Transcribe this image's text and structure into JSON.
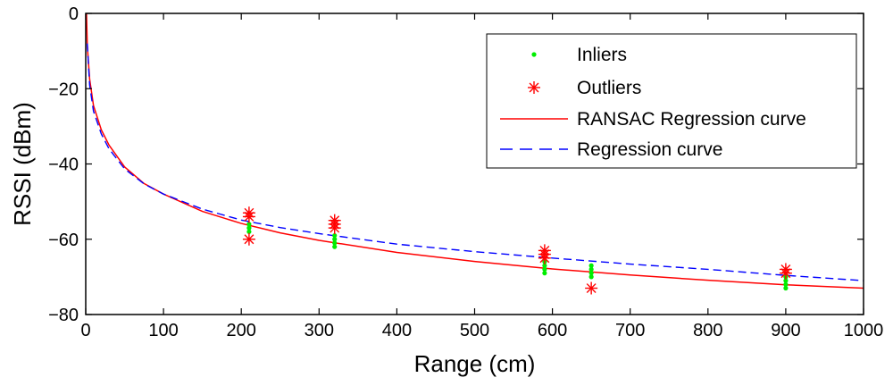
{
  "chart_data": {
    "type": "scatter",
    "xlabel": "Range (cm)",
    "ylabel": "RSSI (dBm)",
    "xlim": [
      0,
      1000
    ],
    "ylim": [
      -80,
      0
    ],
    "xticks": [
      0,
      100,
      200,
      300,
      400,
      500,
      600,
      700,
      800,
      900,
      1000
    ],
    "yticks": [
      0,
      -20,
      -40,
      -60,
      -80
    ],
    "xtick_labels": [
      "0",
      "100",
      "200",
      "300",
      "400",
      "500",
      "600",
      "700",
      "800",
      "900",
      "1000"
    ],
    "ytick_labels": [
      "0",
      "−20",
      "−40",
      "−60",
      "−80"
    ],
    "grid": false,
    "legend_position": "top-right",
    "legend": [
      {
        "label": "Inliers",
        "marker": "dot",
        "color": "#00ee00"
      },
      {
        "label": "Outliers",
        "marker": "asterisk",
        "color": "#ff0000"
      },
      {
        "label": "RANSAC Regression curve",
        "marker": "solid-line",
        "color": "#ff0000"
      },
      {
        "label": "Regression curve",
        "marker": "dashed-line",
        "color": "#0000ff"
      }
    ],
    "series": [
      {
        "name": "Inliers",
        "kind": "points",
        "color": "#00ee00",
        "points": [
          [
            210,
            -56
          ],
          [
            210,
            -57
          ],
          [
            210,
            -58
          ],
          [
            320,
            -59
          ],
          [
            320,
            -60
          ],
          [
            320,
            -61
          ],
          [
            320,
            -62
          ],
          [
            590,
            -66
          ],
          [
            590,
            -67
          ],
          [
            590,
            -68
          ],
          [
            590,
            -69
          ],
          [
            650,
            -67
          ],
          [
            650,
            -68
          ],
          [
            650,
            -69
          ],
          [
            650,
            -70
          ],
          [
            900,
            -70
          ],
          [
            900,
            -71
          ],
          [
            900,
            -72
          ],
          [
            900,
            -73
          ]
        ]
      },
      {
        "name": "Outliers",
        "kind": "points",
        "color": "#ff0000",
        "points": [
          [
            210,
            -53
          ],
          [
            210,
            -54
          ],
          [
            210,
            -60
          ],
          [
            320,
            -55
          ],
          [
            320,
            -56
          ],
          [
            320,
            -57
          ],
          [
            590,
            -63
          ],
          [
            590,
            -64
          ],
          [
            590,
            -65
          ],
          [
            650,
            -73
          ],
          [
            900,
            -68
          ],
          [
            900,
            -69
          ]
        ]
      },
      {
        "name": "RANSAC Regression curve",
        "kind": "line",
        "style": "solid",
        "color": "#ff0000",
        "x": [
          1,
          2,
          5,
          10,
          20,
          30,
          50,
          75,
          100,
          150,
          200,
          250,
          300,
          400,
          500,
          600,
          700,
          800,
          900,
          1000
        ],
        "y": [
          0,
          -8.5,
          -17.4,
          -24.5,
          -30.9,
          -35.0,
          -40.8,
          -45.2,
          -48.0,
          -52.6,
          -55.8,
          -58.3,
          -60.3,
          -63.5,
          -65.9,
          -67.9,
          -69.5,
          -70.9,
          -72.1,
          -73.0
        ]
      },
      {
        "name": "Regression curve",
        "kind": "line",
        "style": "dashed",
        "color": "#0000ff",
        "x": [
          2,
          5,
          10,
          20,
          30,
          50,
          75,
          100,
          150,
          200,
          250,
          300,
          400,
          500,
          600,
          700,
          800,
          900,
          1000
        ],
        "y": [
          -8.0,
          -19.0,
          -26.0,
          -32.0,
          -36.0,
          -41.3,
          -45.3,
          -48.0,
          -52.0,
          -54.9,
          -56.9,
          -58.5,
          -61.3,
          -63.3,
          -65.0,
          -66.6,
          -68.0,
          -69.6,
          -71.0
        ]
      }
    ]
  }
}
